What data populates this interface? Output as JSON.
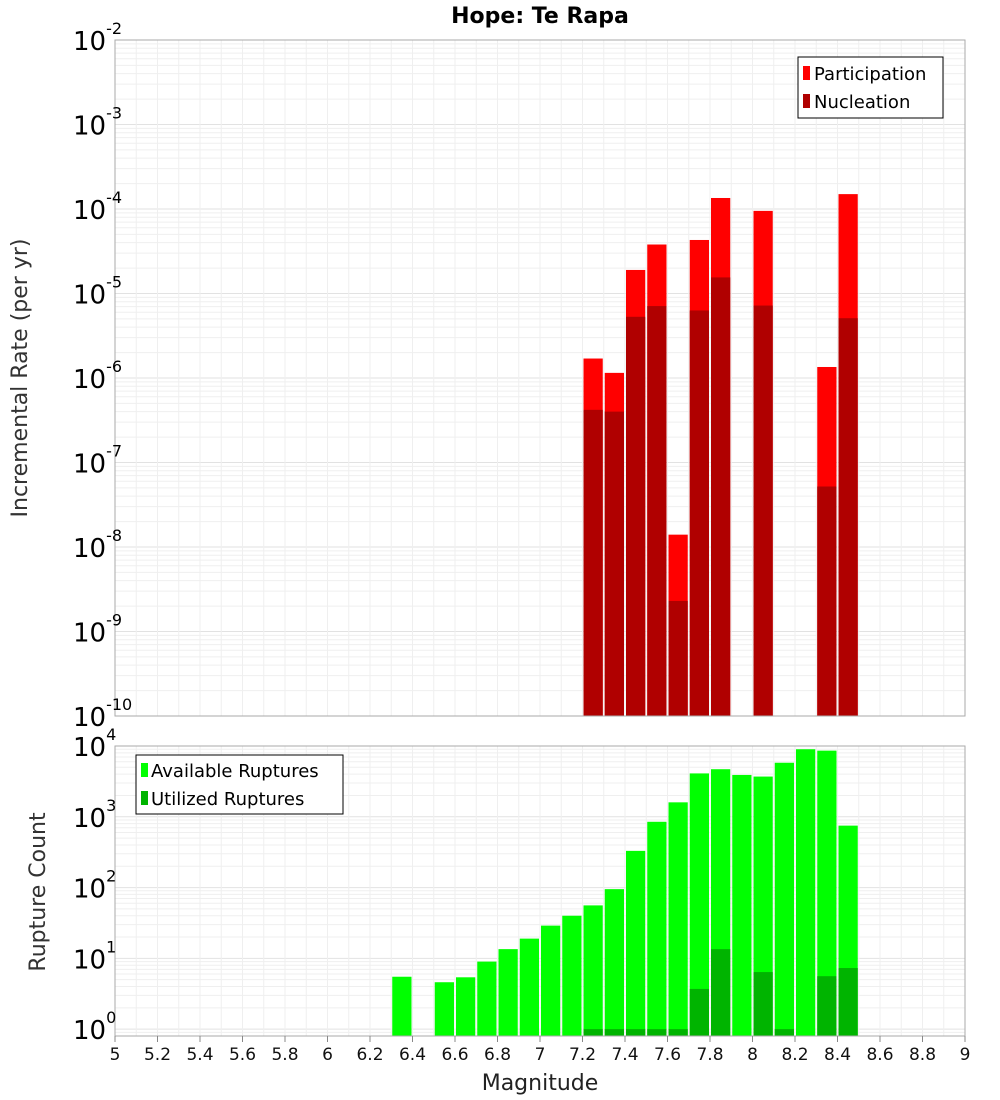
{
  "chart_data": [
    {
      "type": "bar",
      "title": "Hope: Te Rapa",
      "xlabel": "",
      "ylabel": "Incremental Rate (per yr)",
      "yscale": "log",
      "ylim": [
        1e-10,
        0.01
      ],
      "xlim": [
        5,
        9
      ],
      "grid": true,
      "legend": "top-right",
      "y_tick_labels": [
        "10^-10",
        "10^-9",
        "10^-8",
        "10^-7",
        "10^-6",
        "10^-5",
        "10^-4",
        "10^-3",
        "10^-2"
      ],
      "series": [
        {
          "name": "Participation",
          "color": "#ff0000",
          "x": [
            7.25,
            7.35,
            7.45,
            7.55,
            7.65,
            7.75,
            7.85,
            8.05,
            8.35,
            8.45
          ],
          "values": [
            1.7e-06,
            1.15e-06,
            1.9e-05,
            3.8e-05,
            1.4e-08,
            4.3e-05,
            0.000135,
            9.5e-05,
            1.35e-06,
            0.00015
          ]
        },
        {
          "name": "Nucleation",
          "color": "#b00000",
          "x": [
            7.25,
            7.35,
            7.45,
            7.55,
            7.65,
            7.75,
            7.85,
            8.05,
            8.35,
            8.45
          ],
          "values": [
            4.2e-07,
            4e-07,
            5.3e-06,
            7.1e-06,
            2.3e-09,
            6.3e-06,
            1.55e-05,
            7.2e-06,
            5.2e-08,
            5.1e-06
          ]
        }
      ]
    },
    {
      "type": "bar",
      "title": "",
      "xlabel": "Magnitude",
      "ylabel": "Rupture Count",
      "yscale": "log",
      "ylim": [
        0.8,
        10000
      ],
      "xlim": [
        5,
        9
      ],
      "grid": true,
      "legend": "top-left",
      "x_tick_labels": [
        "5",
        "5.2",
        "5.4",
        "5.6",
        "5.8",
        "6",
        "6.2",
        "6.4",
        "6.6",
        "6.8",
        "7",
        "7.2",
        "7.4",
        "7.6",
        "7.8",
        "8",
        "8.2",
        "8.4",
        "8.6",
        "8.8",
        "9"
      ],
      "y_tick_labels": [
        "10^0",
        "10^1",
        "10^2",
        "10^3",
        "10^4"
      ],
      "series": [
        {
          "name": "Available Ruptures",
          "color": "#00ff00",
          "x": [
            6.35,
            6.55,
            6.65,
            6.75,
            6.85,
            6.95,
            7.05,
            7.15,
            7.25,
            7.35,
            7.45,
            7.55,
            7.65,
            7.75,
            7.85,
            7.95,
            8.05,
            8.15,
            8.25,
            8.35,
            8.45
          ],
          "values": [
            5.5,
            4.6,
            5.4,
            9.0,
            13.5,
            19,
            29,
            40,
            56,
            95,
            330,
            850,
            1600,
            4100,
            4700,
            3900,
            3700,
            5800,
            9000,
            8600,
            750
          ]
        },
        {
          "name": "Utilized Ruptures",
          "color": "#00b400",
          "x": [
            7.25,
            7.35,
            7.45,
            7.55,
            7.65,
            7.75,
            7.85,
            8.05,
            8.15,
            8.35,
            8.45
          ],
          "values": [
            1,
            1,
            1,
            1,
            1,
            3.7,
            13.5,
            6.4,
            1,
            5.6,
            7.3
          ]
        }
      ]
    }
  ]
}
